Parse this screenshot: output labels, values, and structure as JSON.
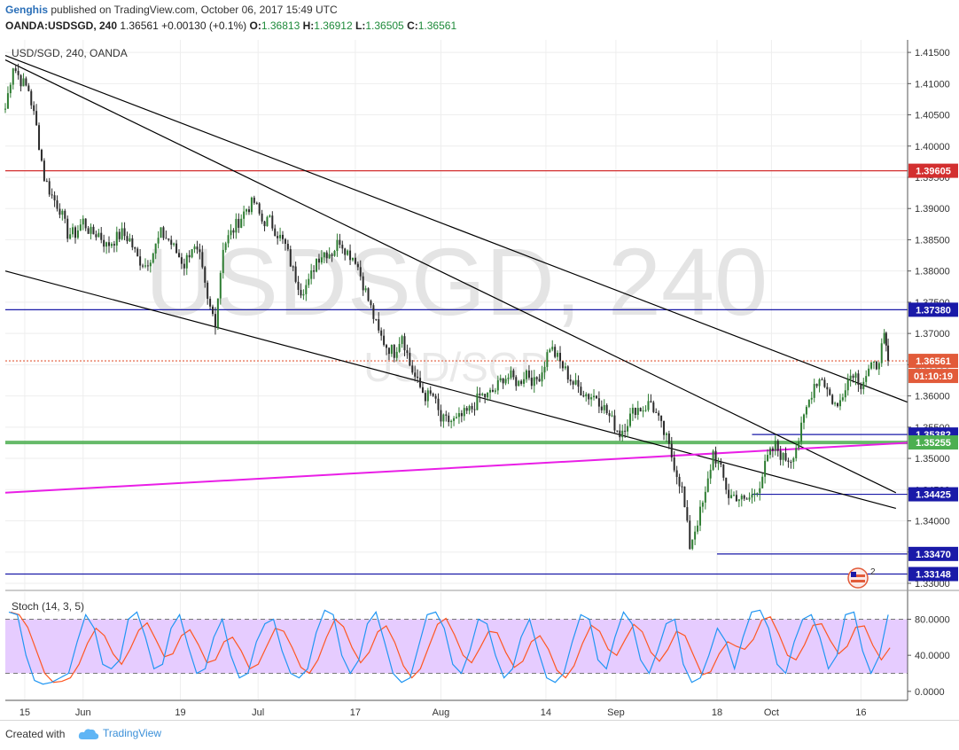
{
  "header": {
    "author": "Genghis",
    "published": "published on TradingView.com, October 06, 2017 15:49 UTC",
    "symbol": "OANDA:USDSGD, 240",
    "last": "1.36561",
    "change": "+0.00130 (+0.1%)",
    "o_label": "O:",
    "o": "1.36813",
    "h_label": "H:",
    "h": "1.36912",
    "l_label": "L:",
    "l": "1.36505",
    "c_label": "C:",
    "c": "1.36561"
  },
  "chart_label": "USD/SGD, 240, OANDA",
  "watermark": {
    "main": "USDSGD, 240",
    "sub": "USD/SGD"
  },
  "stoch_label": "Stoch (14, 3, 5)",
  "footer": {
    "created": "Created with",
    "brand": "TradingView"
  },
  "badge": "2",
  "colors": {
    "up_candle": "#2e7d32",
    "down_candle": "#2b2b2b",
    "trendline": "#000000",
    "level_blue": "#1a1aa8",
    "level_red": "#d32f2f",
    "level_green": "#4caf50",
    "magenta_line": "#e91ee6",
    "stoch_fill": "#e6ccff",
    "stoch_k": "#2196f3",
    "stoch_d": "#ff5722",
    "price_tag": "#e25b3a"
  },
  "chart_data": {
    "type": "candlestick",
    "title": "USD/SGD, 240, OANDA",
    "ylim": [
      1.329,
      1.417
    ],
    "y_ticks": [
      "1.41500",
      "1.41000",
      "1.40500",
      "1.40000",
      "1.39500",
      "1.39000",
      "1.38500",
      "1.38000",
      "1.37500",
      "1.37000",
      "1.36500",
      "1.36000",
      "1.35500",
      "1.35000",
      "1.34500",
      "1.34000",
      "1.33500",
      "1.33000"
    ],
    "y_tick_values": [
      1.415,
      1.41,
      1.405,
      1.4,
      1.395,
      1.39,
      1.385,
      1.38,
      1.375,
      1.37,
      1.365,
      1.36,
      1.355,
      1.35,
      1.345,
      1.34,
      1.335,
      1.33
    ],
    "x_ticks": [
      "15",
      "Jun",
      "19",
      "Jul",
      "17",
      "Aug",
      "14",
      "Sep",
      "18",
      "Oct",
      "16"
    ],
    "x_tick_values": [
      5,
      20,
      45,
      65,
      90,
      112,
      139,
      157,
      183,
      197,
      220
    ],
    "x_range": [
      0,
      232
    ],
    "close_path": [
      [
        0,
        1.406
      ],
      [
        2,
        1.413
      ],
      [
        4,
        1.4105
      ],
      [
        6,
        1.409
      ],
      [
        8,
        1.403
      ],
      [
        10,
        1.395
      ],
      [
        12,
        1.392
      ],
      [
        14,
        1.39
      ],
      [
        16,
        1.386
      ],
      [
        18,
        1.386
      ],
      [
        20,
        1.388
      ],
      [
        22,
        1.386
      ],
      [
        24,
        1.386
      ],
      [
        26,
        1.384
      ],
      [
        28,
        1.385
      ],
      [
        30,
        1.386
      ],
      [
        32,
        1.385
      ],
      [
        34,
        1.382
      ],
      [
        36,
        1.381
      ],
      [
        38,
        1.383
      ],
      [
        40,
        1.386
      ],
      [
        42,
        1.385
      ],
      [
        44,
        1.383
      ],
      [
        46,
        1.381
      ],
      [
        48,
        1.384
      ],
      [
        50,
        1.382
      ],
      [
        52,
        1.375
      ],
      [
        54,
        1.372
      ],
      [
        56,
        1.384
      ],
      [
        58,
        1.386
      ],
      [
        60,
        1.388
      ],
      [
        62,
        1.39
      ],
      [
        64,
        1.391
      ],
      [
        66,
        1.388
      ],
      [
        68,
        1.388
      ],
      [
        70,
        1.386
      ],
      [
        72,
        1.384
      ],
      [
        74,
        1.38
      ],
      [
        76,
        1.377
      ],
      [
        78,
        1.378
      ],
      [
        80,
        1.382
      ],
      [
        82,
        1.383
      ],
      [
        84,
        1.383
      ],
      [
        86,
        1.385
      ],
      [
        88,
        1.383
      ],
      [
        90,
        1.382
      ],
      [
        92,
        1.378
      ],
      [
        94,
        1.374
      ],
      [
        96,
        1.37
      ],
      [
        98,
        1.368
      ],
      [
        100,
        1.367
      ],
      [
        102,
        1.37
      ],
      [
        104,
        1.365
      ],
      [
        106,
        1.362
      ],
      [
        108,
        1.36
      ],
      [
        110,
        1.36
      ],
      [
        112,
        1.356
      ],
      [
        114,
        1.356
      ],
      [
        116,
        1.356
      ],
      [
        118,
        1.357
      ],
      [
        120,
        1.358
      ],
      [
        122,
        1.36
      ],
      [
        124,
        1.36
      ],
      [
        126,
        1.361
      ],
      [
        128,
        1.363
      ],
      [
        130,
        1.363
      ],
      [
        132,
        1.362
      ],
      [
        134,
        1.364
      ],
      [
        136,
        1.362
      ],
      [
        138,
        1.364
      ],
      [
        140,
        1.368
      ],
      [
        142,
        1.366
      ],
      [
        144,
        1.364
      ],
      [
        146,
        1.362
      ],
      [
        148,
        1.361
      ],
      [
        150,
        1.36
      ],
      [
        152,
        1.36
      ],
      [
        154,
        1.358
      ],
      [
        156,
        1.356
      ],
      [
        158,
        1.354
      ],
      [
        160,
        1.356
      ],
      [
        162,
        1.358
      ],
      [
        164,
        1.358
      ],
      [
        166,
        1.359
      ],
      [
        168,
        1.356
      ],
      [
        170,
        1.353
      ],
      [
        172,
        1.349
      ],
      [
        174,
        1.345
      ],
      [
        176,
        1.336
      ],
      [
        178,
        1.34
      ],
      [
        180,
        1.344
      ],
      [
        182,
        1.351
      ],
      [
        184,
        1.348
      ],
      [
        186,
        1.344
      ],
      [
        188,
        1.344
      ],
      [
        190,
        1.343
      ],
      [
        192,
        1.344
      ],
      [
        194,
        1.346
      ],
      [
        196,
        1.35
      ],
      [
        198,
        1.352
      ],
      [
        200,
        1.35
      ],
      [
        202,
        1.35
      ],
      [
        204,
        1.353
      ],
      [
        206,
        1.358
      ],
      [
        208,
        1.362
      ],
      [
        210,
        1.363
      ],
      [
        212,
        1.36
      ],
      [
        214,
        1.358
      ],
      [
        216,
        1.362
      ],
      [
        218,
        1.364
      ],
      [
        220,
        1.362
      ],
      [
        222,
        1.364
      ],
      [
        224,
        1.365
      ],
      [
        226,
        1.369
      ],
      [
        227,
        1.3656
      ]
    ],
    "levels": [
      {
        "value": 1.39605,
        "label": "1.39605",
        "color": "#d32f2f"
      },
      {
        "value": 1.3738,
        "label": "1.37380",
        "color": "#1a1aa8"
      },
      {
        "value": 1.36561,
        "label": "1.36561",
        "color": "#e25b3a",
        "dotted": true
      },
      {
        "value": 1.35382,
        "label": "1.35382",
        "color": "#1a1aa8",
        "x_from": 192
      },
      {
        "value": 1.35255,
        "label": "1.35255",
        "color": "#4caf50",
        "thick": true
      },
      {
        "value": 1.34425,
        "label": "1.34425",
        "color": "#1a1aa8",
        "x_from": 192
      },
      {
        "value": 1.3347,
        "label": "1.33470",
        "color": "#1a1aa8",
        "x_from": 183
      },
      {
        "value": 1.33148,
        "label": "1.33148",
        "color": "#1a1aa8"
      }
    ],
    "countdown": "01:10:19",
    "trendlines": [
      {
        "from": [
          0,
          1.4145
        ],
        "to": [
          236,
          1.359
        ],
        "color": "#000000"
      },
      {
        "from": [
          0,
          1.4138
        ],
        "to": [
          229,
          1.3445
        ],
        "color": "#000000"
      },
      {
        "from": [
          0,
          1.38
        ],
        "to": [
          229,
          1.342
        ],
        "color": "#000000"
      },
      {
        "from": [
          0,
          1.3445
        ],
        "to": [
          247,
          1.3525
        ],
        "color": "#e91ee6"
      }
    ],
    "stochastic": {
      "name": "Stoch (14, 3, 5)",
      "ylim": [
        -10,
        110
      ],
      "y_ticks": [
        "80.0000",
        "40.0000",
        "0.0000"
      ],
      "y_tick_values": [
        80,
        40,
        0
      ],
      "band": [
        20,
        80
      ],
      "k": [
        88,
        85,
        40,
        12,
        8,
        10,
        15,
        20,
        55,
        85,
        70,
        30,
        25,
        35,
        80,
        88,
        60,
        25,
        30,
        70,
        85,
        50,
        20,
        25,
        60,
        80,
        40,
        15,
        20,
        55,
        75,
        80,
        45,
        20,
        15,
        25,
        65,
        90,
        85,
        40,
        20,
        35,
        75,
        88,
        55,
        20,
        10,
        15,
        50,
        85,
        88,
        70,
        30,
        20,
        45,
        80,
        75,
        40,
        15,
        25,
        60,
        80,
        45,
        15,
        10,
        20,
        55,
        85,
        80,
        35,
        25,
        60,
        88,
        75,
        35,
        20,
        45,
        75,
        80,
        30,
        10,
        15,
        40,
        70,
        55,
        25,
        60,
        88,
        90,
        70,
        30,
        20,
        55,
        80,
        85,
        60,
        25,
        40,
        85,
        88,
        45,
        20,
        40,
        85
      ]
    }
  }
}
